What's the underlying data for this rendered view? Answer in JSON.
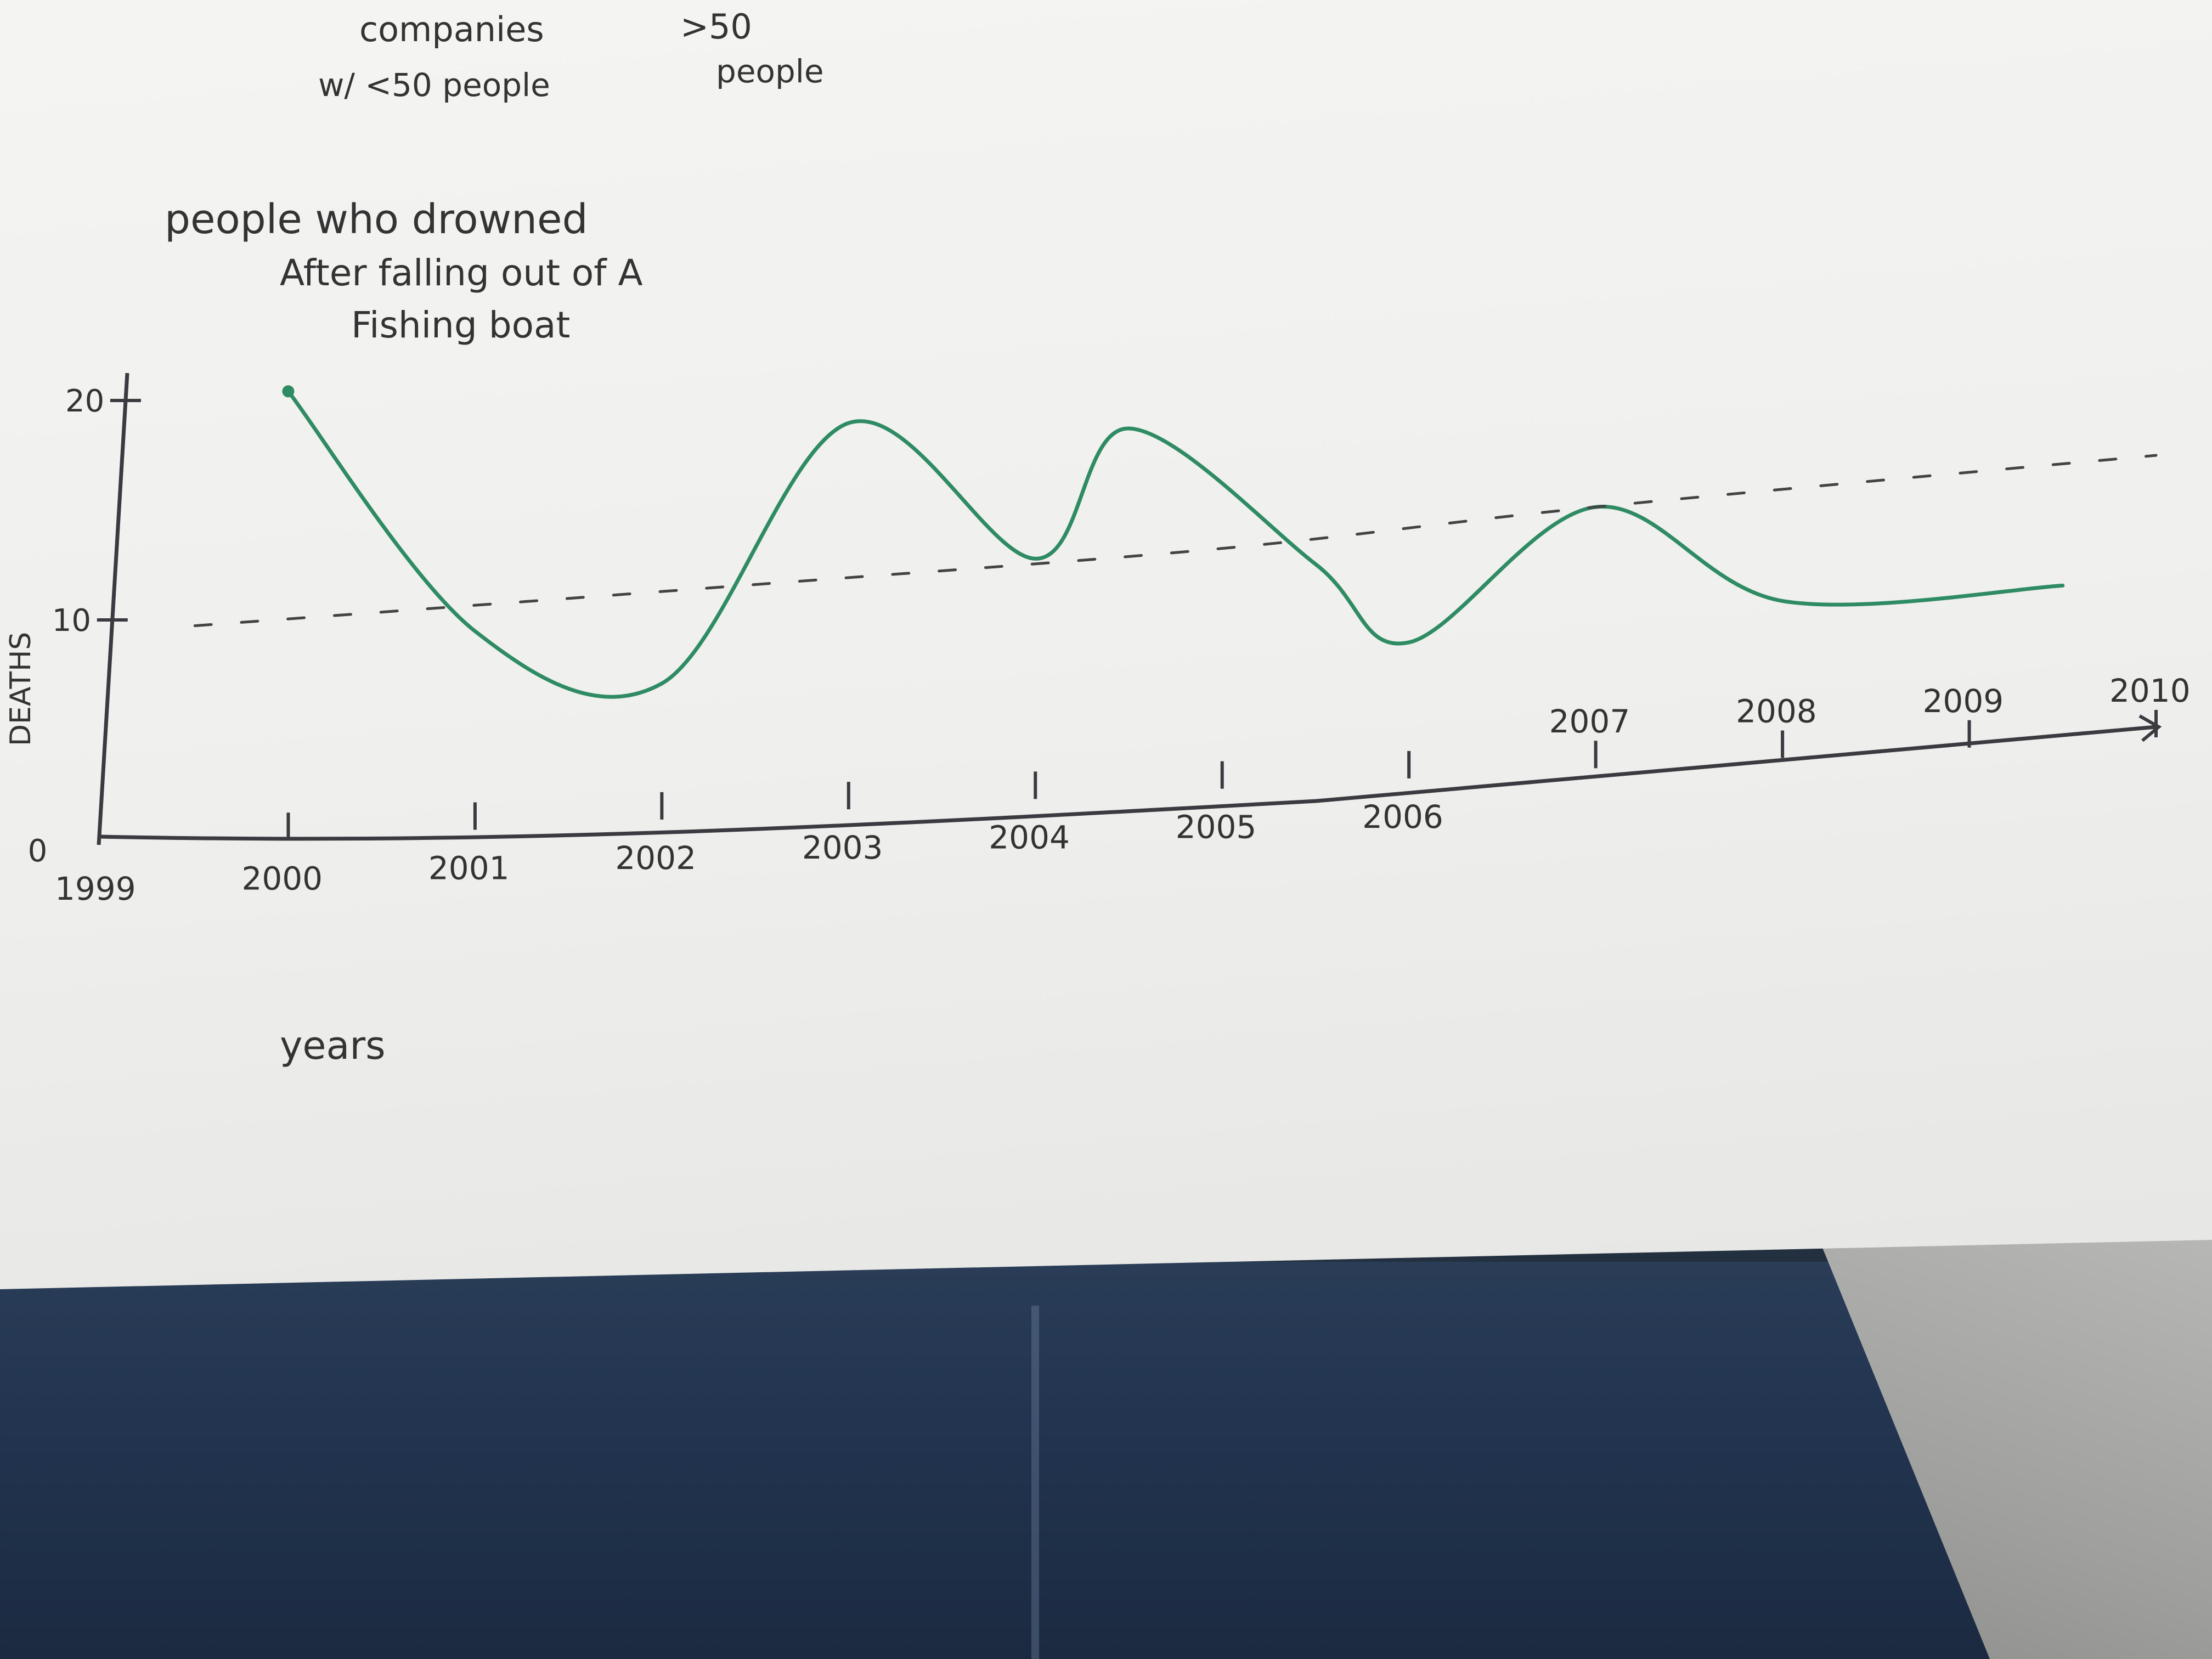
{
  "notes": {
    "line1_left": "companies",
    "line1_right": ">50",
    "line2_left": "w/ <50 people",
    "line2_right": "people"
  },
  "chart_data": {
    "type": "line",
    "title_lines": [
      "people who drowned",
      "After falling out of A",
      "Fishing boat"
    ],
    "xlabel": "years",
    "ylabel": "DEATHS",
    "x_ticks": [
      "1999",
      "2000",
      "2001",
      "2002",
      "2003",
      "2004",
      "2005",
      "2006",
      "2007",
      "2008",
      "2009",
      "2010"
    ],
    "y_ticks": [
      "0",
      "10",
      "20"
    ],
    "ylim": [
      0,
      22
    ],
    "grid": false,
    "series": [
      {
        "color": "#2e8b63",
        "style": "solid",
        "points": [
          {
            "x": 2000,
            "y": 21
          },
          {
            "x": 2001,
            "y": 9
          },
          {
            "x": 2002,
            "y": 6
          },
          {
            "x": 2003,
            "y": 18
          },
          {
            "x": 2004,
            "y": 11
          },
          {
            "x": 2004.5,
            "y": 17
          },
          {
            "x": 2005.5,
            "y": 10
          },
          {
            "x": 2006,
            "y": 6
          },
          {
            "x": 2007,
            "y": 12
          },
          {
            "x": 2008,
            "y": 7
          },
          {
            "x": 2009.5,
            "y": 7
          }
        ]
      },
      {
        "color": "#444444",
        "style": "dashed",
        "points": [
          {
            "x": 1999.5,
            "y": 10
          },
          {
            "x": 2002.5,
            "y": 10.5
          },
          {
            "x": 2005,
            "y": 11
          },
          {
            "x": 2007,
            "y": 12
          },
          {
            "x": 2010,
            "y": 13
          }
        ]
      }
    ]
  }
}
